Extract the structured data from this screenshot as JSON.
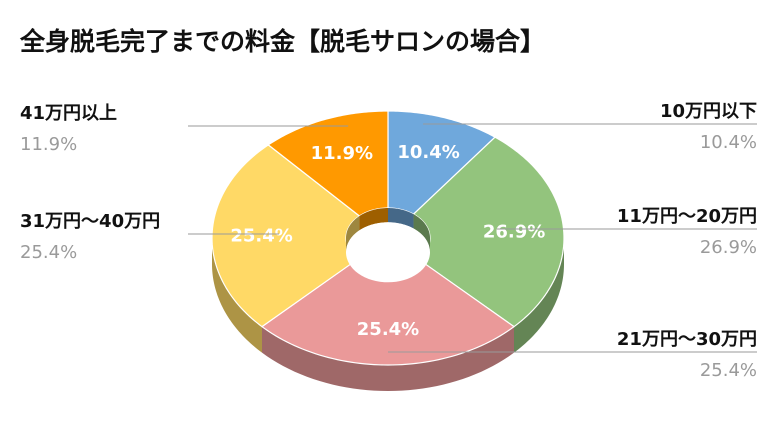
{
  "chart_data": {
    "type": "pie",
    "style": "3d-donut",
    "title": "全身脱毛完了までの料金【脱毛サロンの場合】",
    "slices": [
      {
        "label": "10万円以下",
        "value": 10.4,
        "display": "10.4%",
        "color": "#6fa8dc"
      },
      {
        "label": "11万円〜20万円",
        "value": 26.9,
        "display": "26.9%",
        "color": "#93c47d"
      },
      {
        "label": "21万円〜30万円",
        "value": 25.4,
        "display": "25.4%",
        "color": "#ea9999"
      },
      {
        "label": "31万円〜40万円",
        "value": 25.4,
        "display": "25.4%",
        "color": "#ffd966"
      },
      {
        "label": "41万円以上",
        "value": 11.9,
        "display": "11.9%",
        "color": "#ff9900"
      }
    ],
    "start": "12 o'clock",
    "direction": "clockwise"
  }
}
